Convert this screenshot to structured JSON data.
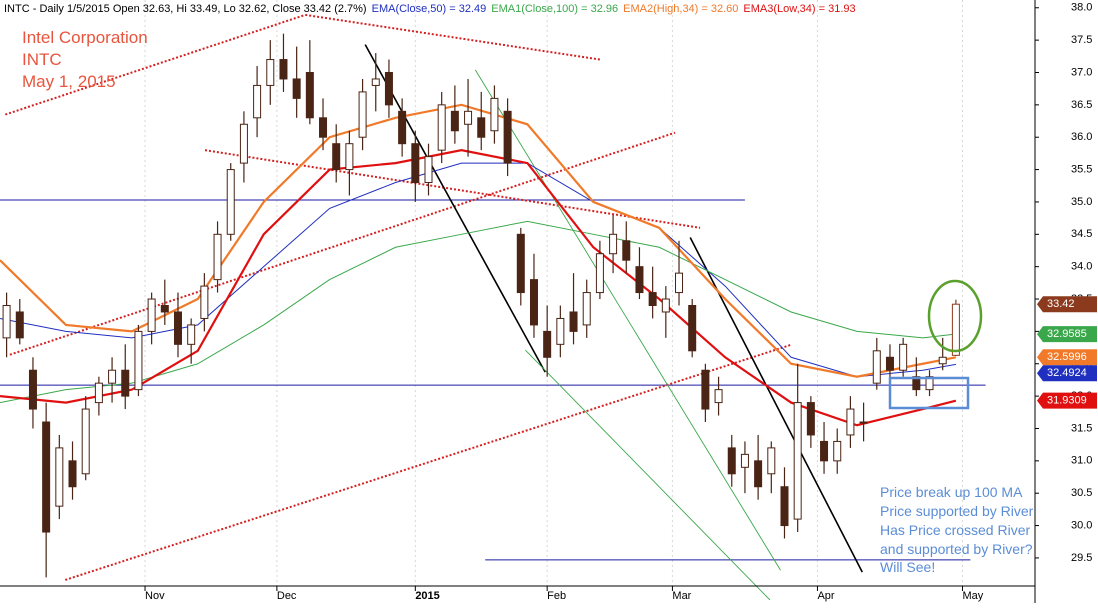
{
  "chart_data": {
    "type": "candlestick",
    "header": "INTC - Daily 1/5/2015 Open 32.63, Hi 33.49, Lo 32.62, Close 33.42 (2.7%)",
    "annotations": [
      "Intel Corporation",
      "INTC",
      "May 1, 2015"
    ],
    "notes": [
      "Price break up 100 MA",
      "Price supported by River",
      "Has Price crossed River",
      "and supported by River?",
      "Will See!"
    ],
    "xlim": [
      0,
      157
    ],
    "ylim": [
      28.85,
      38.12
    ],
    "xticks": [
      {
        "value": 22,
        "label": "Nov"
      },
      {
        "value": 42,
        "label": "Dec"
      },
      {
        "value": 63,
        "label": "2015"
      },
      {
        "value": 83,
        "label": "Feb"
      },
      {
        "value": 102,
        "label": "Mar"
      },
      {
        "value": 124,
        "label": "Apr"
      },
      {
        "value": 146,
        "label": "May"
      }
    ],
    "yticks": [
      29.5,
      {
        "value": 30,
        "label": "30.0"
      },
      30.5,
      {
        "value": 31,
        "label": "31.0"
      },
      31.5,
      {
        "value": 32,
        "label": "32.0"
      },
      32.5,
      {
        "value": 33,
        "label": "33.0"
      },
      33.5,
      {
        "value": 34,
        "label": "34.0"
      },
      34.5,
      {
        "value": 35,
        "label": "35.0"
      },
      35.5,
      {
        "value": 36,
        "label": "36.0"
      },
      36.5,
      {
        "value": 37,
        "label": "37.0"
      },
      37.5,
      {
        "value": 38,
        "label": "38.0"
      }
    ],
    "grid": true,
    "up_color": "#ffffff",
    "down_color": "#4a2414",
    "last_color": "#8b3a1e",
    "candles": {
      "x": [
        1,
        3,
        5,
        7,
        9,
        11,
        13,
        15,
        17,
        19,
        21,
        23,
        25,
        27,
        29,
        31,
        33,
        35,
        37,
        39,
        41,
        43,
        45,
        47,
        49,
        51,
        53,
        55,
        57,
        59,
        61,
        63,
        65,
        67,
        69,
        71,
        73,
        75,
        77,
        79,
        81,
        83,
        85,
        87,
        89,
        91,
        93,
        95,
        97,
        99,
        101,
        103,
        105,
        107,
        109,
        111,
        113,
        115,
        117,
        119,
        121,
        123,
        125,
        127,
        129,
        131,
        133,
        135,
        137,
        139,
        141,
        143,
        145
      ],
      "open": [
        32.9,
        33.3,
        32.4,
        31.6,
        30.3,
        31.0,
        30.8,
        31.9,
        32.2,
        32.4,
        32.1,
        33.0,
        33.4,
        33.3,
        32.8,
        33.2,
        33.8,
        34.5,
        35.6,
        36.3,
        36.8,
        37.2,
        36.9,
        37.0,
        36.3,
        35.9,
        35.5,
        36.0,
        36.8,
        37.0,
        36.4,
        35.9,
        35.3,
        35.8,
        36.4,
        36.2,
        36.3,
        36.1,
        36.4,
        34.5,
        33.8,
        33.0,
        32.8,
        33.3,
        33.1,
        33.6,
        34.2,
        34.4,
        34.0,
        33.6,
        33.3,
        33.6,
        33.4,
        32.4,
        31.9,
        31.2,
        30.9,
        31.0,
        30.8,
        30.6,
        30.1,
        31.9,
        31.3,
        31.0,
        31.4,
        31.6,
        32.2,
        32.6,
        32.4,
        32.3,
        32.1,
        32.5,
        32.63
      ],
      "high": [
        33.6,
        33.5,
        32.6,
        31.9,
        31.4,
        31.3,
        32.0,
        32.3,
        32.6,
        32.8,
        33.1,
        33.6,
        33.8,
        33.6,
        33.2,
        33.9,
        34.7,
        35.6,
        36.4,
        37.1,
        37.5,
        37.6,
        37.4,
        37.5,
        36.6,
        36.2,
        36.1,
        36.9,
        37.3,
        37.2,
        36.6,
        36.1,
        35.9,
        36.7,
        36.8,
        36.9,
        36.7,
        36.8,
        36.6,
        34.6,
        34.2,
        33.4,
        33.4,
        33.9,
        33.8,
        34.4,
        34.8,
        34.7,
        34.3,
        34.0,
        33.7,
        34.4,
        33.5,
        32.5,
        32.3,
        31.4,
        31.3,
        31.4,
        31.3,
        30.9,
        32.5,
        32.0,
        31.6,
        31.5,
        32.0,
        31.9,
        32.9,
        32.8,
        32.9,
        32.6,
        32.4,
        32.9,
        33.49
      ],
      "low": [
        32.6,
        32.8,
        31.5,
        29.2,
        30.1,
        30.4,
        30.7,
        31.7,
        31.9,
        31.8,
        32.0,
        32.8,
        33.1,
        32.6,
        32.5,
        33.0,
        33.6,
        34.4,
        35.3,
        36.0,
        36.5,
        36.7,
        36.3,
        36.2,
        35.8,
        35.3,
        35.1,
        35.8,
        36.4,
        36.3,
        35.7,
        35.0,
        35.1,
        35.6,
        35.9,
        35.7,
        35.8,
        35.9,
        35.4,
        33.4,
        32.9,
        32.3,
        32.6,
        32.8,
        32.9,
        33.5,
        33.9,
        33.9,
        33.5,
        33.2,
        32.9,
        33.4,
        32.6,
        31.6,
        31.7,
        30.6,
        30.5,
        30.4,
        30.5,
        29.8,
        29.9,
        31.2,
        30.8,
        30.8,
        31.2,
        31.3,
        32.1,
        32.2,
        32.3,
        32.0,
        32.0,
        32.4,
        32.62
      ],
      "close": [
        33.4,
        32.9,
        31.8,
        29.9,
        31.2,
        30.6,
        31.8,
        32.2,
        32.4,
        32.0,
        33.0,
        33.5,
        33.3,
        32.8,
        33.1,
        33.7,
        34.5,
        35.5,
        36.2,
        36.8,
        37.2,
        36.9,
        36.6,
        36.3,
        36.0,
        35.5,
        35.9,
        36.7,
        36.9,
        36.5,
        35.9,
        35.3,
        35.7,
        36.5,
        36.1,
        36.4,
        36.0,
        36.6,
        35.6,
        33.6,
        33.1,
        32.6,
        33.2,
        33.0,
        33.6,
        34.2,
        34.5,
        34.1,
        33.6,
        33.4,
        33.5,
        33.9,
        32.7,
        31.8,
        32.1,
        30.8,
        31.1,
        30.6,
        31.2,
        30.0,
        31.9,
        31.4,
        31.0,
        31.3,
        31.8,
        31.6,
        32.7,
        32.4,
        32.8,
        32.1,
        32.3,
        32.6,
        33.42
      ]
    },
    "series": [
      {
        "name": "EMA(Close,50) = 32.49",
        "color": "#1f2fbf",
        "width": 1,
        "last_value": 32.4924,
        "x": [
          0,
          10,
          20,
          30,
          40,
          50,
          60,
          70,
          80,
          90,
          100,
          110,
          120,
          130,
          140,
          145
        ],
        "values": [
          33.2,
          33.0,
          32.9,
          33.1,
          34.0,
          34.9,
          35.3,
          35.6,
          35.6,
          35.0,
          34.6,
          33.7,
          32.6,
          32.3,
          32.4,
          32.49
        ]
      },
      {
        "name": "EMA1(Close,100) = 32.96",
        "color": "#3aa84a",
        "width": 1,
        "last_value": 32.9585,
        "x": [
          0,
          10,
          20,
          30,
          40,
          50,
          60,
          70,
          80,
          90,
          100,
          110,
          120,
          130,
          140,
          145
        ],
        "values": [
          31.9,
          32.1,
          32.2,
          32.5,
          33.1,
          33.8,
          34.3,
          34.5,
          34.7,
          34.5,
          34.3,
          33.8,
          33.3,
          33.0,
          32.9,
          32.96
        ]
      },
      {
        "name": "EMA2(High,34) = 32.60",
        "color": "#f07a2a",
        "width": 2.2,
        "last_value": 32.5996,
        "x": [
          0,
          10,
          20,
          30,
          40,
          50,
          60,
          70,
          80,
          90,
          100,
          110,
          120,
          130,
          140,
          145
        ],
        "values": [
          34.1,
          33.1,
          33.0,
          33.5,
          35.0,
          36.0,
          36.3,
          36.5,
          36.2,
          35.0,
          34.6,
          33.5,
          32.5,
          32.3,
          32.5,
          32.6
        ]
      },
      {
        "name": "EMA3(Low,34) = 31.93",
        "color": "#e01010",
        "width": 2.2,
        "last_value": 31.9309,
        "x": [
          0,
          10,
          20,
          30,
          40,
          50,
          60,
          70,
          80,
          90,
          100,
          110,
          120,
          130,
          140,
          145
        ],
        "values": [
          32.0,
          31.9,
          32.1,
          32.7,
          34.5,
          35.5,
          35.6,
          35.8,
          35.6,
          34.3,
          33.5,
          32.6,
          31.9,
          31.55,
          31.8,
          31.93
        ]
      }
    ],
    "hlines": [
      {
        "value": 35.03,
        "x": [
          0,
          113
        ],
        "color": "#1a1aa0"
      },
      {
        "value": 32.17,
        "x": [
          0,
          149.5
        ],
        "color": "#1a1aa0"
      },
      {
        "value": 29.47,
        "x": [
          73.6,
          147.2
        ],
        "color": "#1a1aa0"
      }
    ],
    "trend_lines": [
      {
        "x": [
          0.8,
          46.3
        ],
        "y": [
          36.35,
          37.89
        ],
        "color": "#d42020",
        "dash": true
      },
      {
        "x": [
          46.3,
          91.0
        ],
        "y": [
          37.89,
          37.2
        ],
        "color": "#d42020",
        "dash": true
      },
      {
        "x": [
          31.1,
          106.2
        ],
        "y": [
          35.8,
          34.6
        ],
        "color": "#d42020",
        "dash": true
      },
      {
        "x": [
          1.5,
          102.4
        ],
        "y": [
          32.64,
          36.07
        ],
        "color": "#d42020",
        "dash": true
      },
      {
        "x": [
          9.9,
          119.9
        ],
        "y": [
          29.16,
          32.79
        ],
        "color": "#d42020",
        "dash": true
      },
      {
        "x": [
          55.4,
          82.7
        ],
        "y": [
          37.43,
          32.37
        ],
        "color": "#000000",
        "dash": false
      },
      {
        "x": [
          104.7,
          130.8
        ],
        "y": [
          34.45,
          29.28
        ],
        "color": "#000000",
        "dash": false
      },
      {
        "x": [
          72.1,
          118.4
        ],
        "y": [
          37.04,
          29.31
        ],
        "color": "#3aa84a",
        "dash": false
      },
      {
        "x": [
          79.7,
          116.8
        ],
        "y": [
          32.71,
          28.85
        ],
        "color": "#3aa84a",
        "dash": false
      }
    ]
  }
}
